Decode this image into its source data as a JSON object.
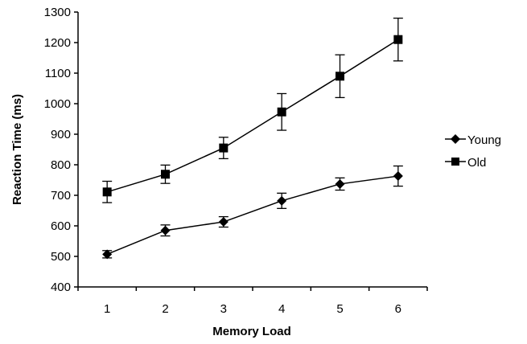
{
  "chart_data": {
    "type": "line",
    "title": "",
    "xlabel": "Memory Load",
    "ylabel": "Reaction Time (ms)",
    "categories": [
      "1",
      "2",
      "3",
      "4",
      "5",
      "6"
    ],
    "x": [
      1,
      2,
      3,
      4,
      5,
      6
    ],
    "ylim": [
      400,
      1300
    ],
    "yticks": [
      400,
      500,
      600,
      700,
      800,
      900,
      1000,
      1100,
      1200,
      1300
    ],
    "grid": false,
    "legend_position": "right",
    "series": [
      {
        "name": "Young",
        "marker": "diamond",
        "values": [
          507,
          585,
          613,
          682,
          737,
          763
        ],
        "error": [
          12,
          18,
          17,
          25,
          20,
          33
        ]
      },
      {
        "name": "Old",
        "marker": "square",
        "values": [
          711,
          769,
          855,
          973,
          1090,
          1210
        ],
        "error": [
          35,
          30,
          35,
          60,
          70,
          70
        ]
      }
    ],
    "color": "#000000"
  }
}
